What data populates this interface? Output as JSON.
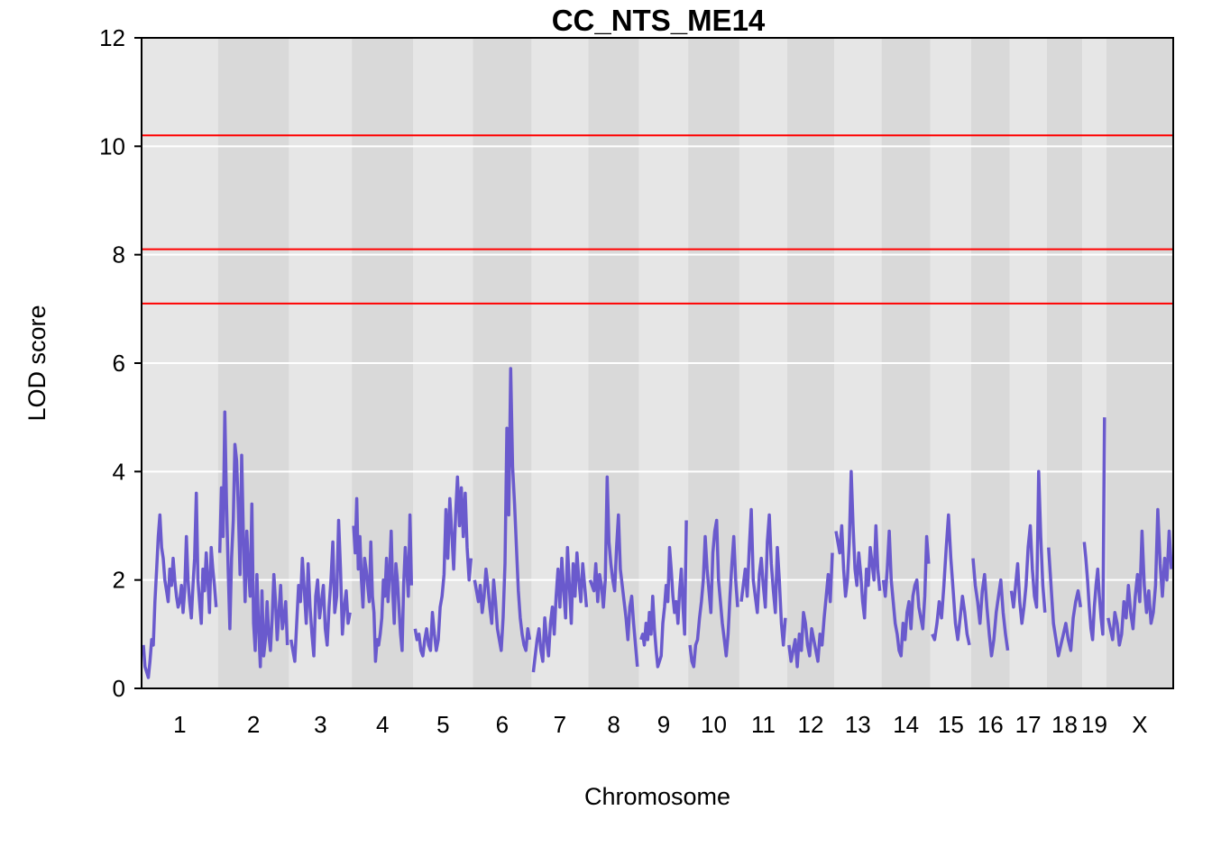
{
  "chart_data": {
    "type": "line",
    "title": "CC_NTS_ME14",
    "xlabel": "Chromosome",
    "ylabel": "LOD score",
    "ylim": [
      0,
      12
    ],
    "yticks": [
      0,
      2,
      4,
      6,
      8,
      10,
      12
    ],
    "grid": true,
    "colors": {
      "line": "#6A5ACD",
      "threshold": "#FF0000",
      "band_light": "#E6E6E6",
      "band_dark": "#D9D9D9",
      "grid": "#FFFFFF"
    },
    "thresholds": [
      10.2,
      8.1,
      7.1
    ],
    "chromosomes": [
      {
        "label": "1",
        "length": 195
      },
      {
        "label": "2",
        "length": 182
      },
      {
        "label": "3",
        "length": 160
      },
      {
        "label": "4",
        "length": 157
      },
      {
        "label": "5",
        "length": 152
      },
      {
        "label": "6",
        "length": 150
      },
      {
        "label": "7",
        "length": 145
      },
      {
        "label": "8",
        "length": 130
      },
      {
        "label": "9",
        "length": 125
      },
      {
        "label": "10",
        "length": 131
      },
      {
        "label": "11",
        "length": 122
      },
      {
        "label": "12",
        "length": 120
      },
      {
        "label": "13",
        "length": 121
      },
      {
        "label": "14",
        "length": 125
      },
      {
        "label": "15",
        "length": 104
      },
      {
        "label": "16",
        "length": 98
      },
      {
        "label": "17",
        "length": 95
      },
      {
        "label": "18",
        "length": 91
      },
      {
        "label": "19",
        "length": 61
      },
      {
        "label": "X",
        "length": 171
      }
    ],
    "series": [
      {
        "values": [
          [
            0.8,
            0.4,
            0.3,
            0.2,
            0.5,
            0.9,
            0.8,
            1.6,
            2.2,
            2.8,
            3.2,
            2.6,
            2.4,
            2.0,
            1.8,
            1.6,
            2.2,
            1.9,
            2.4,
            2.0,
            1.7,
            1.5,
            1.6,
            1.9,
            1.4,
            1.8,
            2.8,
            2.0,
            1.6,
            1.3,
            1.9,
            2.4,
            3.6,
            2.0,
            1.6,
            1.2,
            2.2,
            1.8,
            2.5,
            2.0,
            1.4,
            2.6,
            2.2,
            1.9,
            1.5
          ],
          [
            2.5,
            3.7,
            2.8,
            5.1,
            3.4,
            2.2,
            1.1,
            2.4,
            3.1,
            4.5,
            4.2,
            3.3,
            2.1,
            4.3,
            2.8,
            1.6,
            2.9,
            2.2,
            1.7,
            3.4,
            1.2,
            0.7,
            2.1,
            1.1,
            0.4,
            1.8,
            0.6,
            0.9,
            1.6,
            1.0,
            0.7,
            1.3,
            2.1,
            1.6,
            0.9,
            1.4,
            1.9,
            1.1,
            1.3,
            1.6,
            0.8
          ],
          [
            0.9,
            0.7,
            0.5,
            1.2,
            1.9,
            1.6,
            2.4,
            1.8,
            1.2,
            2.3,
            1.5,
            1.0,
            0.6,
            1.7,
            2.0,
            1.3,
            1.6,
            1.9,
            1.1,
            0.8,
            1.5,
            2.0,
            2.7,
            1.4,
            1.7,
            3.1,
            2.2,
            1.0,
            1.5,
            1.8,
            1.2,
            1.4
          ],
          [
            3.0,
            2.5,
            3.5,
            2.2,
            2.8,
            2.0,
            1.5,
            2.4,
            2.2,
            1.9,
            1.6,
            2.7,
            1.7,
            1.4,
            0.5,
            0.9,
            0.8,
            1.0,
            1.3,
            2.0,
            1.7,
            2.4,
            1.6,
            2.1,
            2.9,
            1.8,
            1.2,
            2.3,
            2.0,
            1.5,
            1.0,
            0.7,
            1.9,
            2.6,
            2.2,
            1.7,
            3.2,
            1.9
          ],
          [
            1.1,
            0.9,
            1.0,
            0.7,
            0.6,
            0.9,
            1.1,
            0.8,
            0.7,
            1.4,
            1.0,
            0.7,
            0.9,
            1.5,
            1.7,
            2.1,
            3.3,
            2.4,
            3.5,
            2.9,
            2.2,
            3.2,
            3.9,
            3.0,
            3.7,
            2.8,
            3.6,
            2.6,
            2.0,
            2.4
          ],
          [
            2.0,
            1.8,
            1.6,
            1.9,
            1.4,
            1.7,
            2.2,
            1.9,
            1.5,
            1.2,
            2.0,
            1.6,
            1.1,
            0.9,
            0.7,
            1.3,
            2.3,
            4.8,
            3.2,
            5.9,
            4.1,
            3.4,
            2.6,
            1.8,
            1.3,
            1.0,
            0.8,
            0.7,
            1.1,
            0.9
          ],
          [
            0.3,
            0.6,
            0.9,
            1.1,
            0.7,
            0.5,
            1.3,
            0.9,
            0.6,
            1.2,
            1.5,
            1.0,
            1.7,
            2.2,
            1.5,
            2.4,
            1.8,
            1.3,
            2.6,
            1.9,
            1.2,
            2.3,
            1.7,
            2.5,
            2.0,
            1.6,
            2.3,
            1.9,
            1.5
          ],
          [
            2.0,
            1.9,
            1.8,
            2.3,
            1.6,
            2.1,
            1.9,
            1.5,
            2.0,
            3.9,
            2.7,
            2.3,
            2.0,
            1.8,
            2.6,
            3.2,
            2.2,
            1.9,
            1.6,
            1.3,
            0.9,
            1.5,
            1.7,
            1.2,
            0.8,
            0.4
          ],
          [
            0.9,
            1.0,
            0.8,
            1.2,
            0.9,
            1.4,
            1.0,
            1.7,
            1.1,
            0.7,
            0.4,
            0.5,
            0.6,
            1.2,
            1.5,
            1.9,
            1.6,
            2.6,
            2.2,
            1.7,
            1.4,
            1.6,
            1.2,
            1.8,
            2.2,
            1.5,
            1.0,
            3.1
          ],
          [
            0.8,
            0.5,
            0.4,
            0.8,
            0.9,
            1.3,
            1.6,
            2.0,
            2.8,
            2.2,
            1.8,
            1.4,
            2.5,
            2.9,
            3.1,
            2.0,
            1.6,
            1.2,
            0.9,
            0.6,
            1.0,
            1.7,
            2.3,
            2.8,
            2.0,
            1.5
          ],
          [
            1.6,
            1.9,
            2.2,
            1.7,
            2.6,
            3.3,
            2.0,
            1.7,
            1.4,
            2.1,
            2.4,
            1.9,
            1.5,
            2.7,
            3.2,
            2.3,
            1.8,
            1.4,
            2.6,
            2.0,
            1.2,
            0.8,
            1.3
          ],
          [
            0.8,
            0.5,
            0.7,
            0.9,
            0.4,
            1.0,
            0.7,
            1.4,
            1.2,
            0.8,
            0.6,
            1.1,
            0.9,
            0.7,
            0.5,
            1.0,
            0.8,
            1.3,
            1.7,
            2.1,
            1.6,
            2.5
          ],
          [
            2.9,
            2.7,
            2.5,
            3.0,
            2.2,
            1.7,
            2.0,
            2.7,
            4.0,
            3.0,
            2.2,
            1.9,
            2.5,
            2.1,
            1.6,
            1.3,
            2.2,
            1.9,
            2.6,
            2.3,
            2.0,
            3.0,
            2.2,
            1.8
          ],
          [
            2.0,
            1.7,
            2.2,
            2.9,
            2.0,
            1.6,
            1.2,
            1.0,
            0.7,
            0.6,
            1.2,
            0.9,
            1.4,
            1.6,
            1.1,
            1.7,
            1.9,
            2.0,
            1.5,
            1.3,
            1.1,
            1.7,
            2.8,
            2.3
          ],
          [
            1.0,
            0.9,
            1.2,
            1.6,
            1.3,
            1.9,
            2.6,
            3.2,
            2.4,
            1.8,
            1.2,
            0.9,
            1.3,
            1.7,
            1.4,
            1.0,
            0.8
          ],
          [
            2.4,
            1.9,
            1.6,
            1.2,
            1.8,
            2.1,
            1.5,
            1.0,
            0.6,
            0.9,
            1.4,
            1.7,
            2.0,
            1.4,
            1.0,
            0.7
          ],
          [
            1.8,
            1.5,
            1.9,
            2.3,
            1.6,
            1.2,
            1.5,
            1.9,
            2.6,
            3.0,
            2.2,
            1.7,
            1.5,
            4.0,
            2.8,
            1.9,
            1.4
          ],
          [
            2.6,
            1.9,
            1.2,
            0.9,
            0.6,
            0.8,
            1.0,
            1.2,
            0.9,
            0.7,
            1.3,
            1.6,
            1.8,
            1.5
          ],
          [
            2.7,
            2.4,
            2.0,
            1.5,
            1.1,
            0.9,
            1.5,
            1.9,
            2.2,
            1.7,
            1.3,
            1.0,
            5.0
          ],
          [
            1.3,
            1.1,
            0.9,
            1.4,
            1.2,
            0.8,
            1.0,
            1.6,
            1.3,
            1.9,
            1.4,
            1.1,
            1.7,
            2.1,
            1.6,
            2.9,
            1.9,
            1.4,
            1.8,
            1.2,
            1.4,
            1.9,
            3.3,
            2.3,
            1.7,
            2.4,
            2.0,
            2.9,
            2.2
          ]
        ]
      }
    ]
  }
}
